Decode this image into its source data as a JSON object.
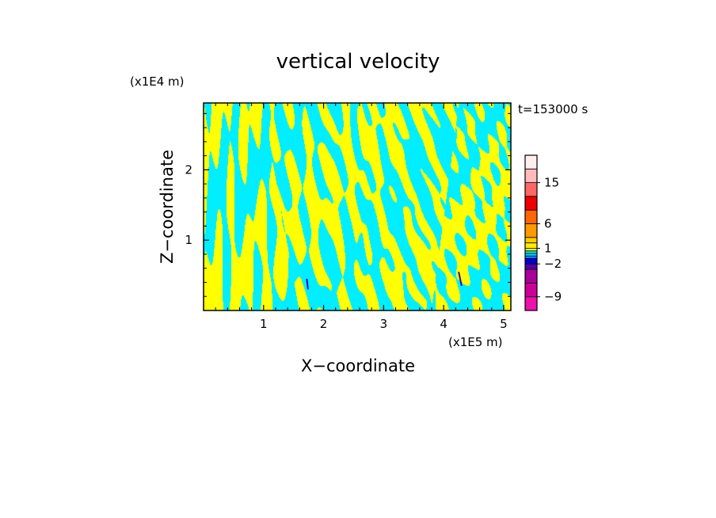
{
  "chart_data": {
    "type": "heatmap",
    "title": "vertical velocity",
    "xlabel": "X−coordinate",
    "ylabel": "Z−coordinate",
    "x_unit": "(x1E5 m)",
    "y_unit": "(x1E4 m)",
    "time_label": "t=153000 s",
    "xlim": [
      0.0,
      5.12
    ],
    "ylim": [
      0.0,
      2.95
    ],
    "x_ticks": [
      1,
      2,
      3,
      4,
      5
    ],
    "y_ticks": [
      1,
      2
    ],
    "x_tick_labels": [
      "1",
      "2",
      "3",
      "4",
      "5"
    ],
    "y_tick_labels": [
      "1",
      "2"
    ],
    "colorbar": {
      "levels": [
        -12,
        -9,
        -6,
        -3,
        -2,
        -1,
        -0.5,
        0,
        0.5,
        1,
        2,
        3,
        6,
        9,
        12,
        15,
        18,
        21
      ],
      "colors": [
        "#ee11aa",
        "#cc0099",
        "#aa0099",
        "#5500aa",
        "#0000dd",
        "#0088ff",
        "#00ddff",
        "#00eeff",
        "#ffff00",
        "#ffee00",
        "#ffcc00",
        "#ff9900",
        "#ff6600",
        "#ee0000",
        "#ff6666",
        "#ffbbbb",
        "#ffeeee"
      ],
      "tick_labels": [
        {
          "value": 15,
          "label": "15"
        },
        {
          "value": 6,
          "label": "6"
        },
        {
          "value": 1,
          "label": "1"
        },
        {
          "value": -2,
          "label": "−2"
        },
        {
          "value": -9,
          "label": "−9"
        }
      ]
    },
    "field_colors": {
      "positive": "#ffff00",
      "negative": "#00eeff"
    }
  }
}
